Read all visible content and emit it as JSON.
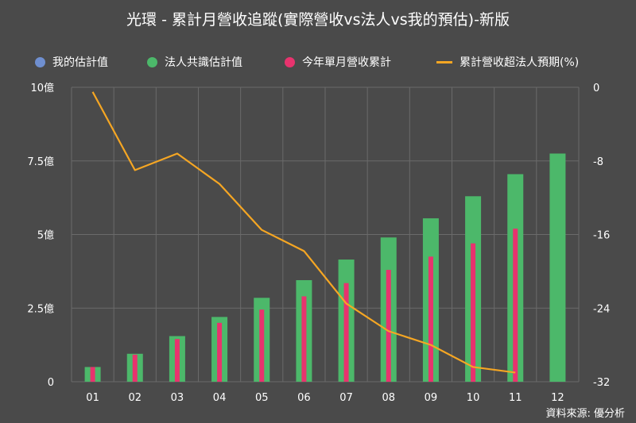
{
  "chart_data": {
    "type": "bar",
    "title": "光環 - 累計月營收追蹤(實際營收vs法人vs我的預估)-新版",
    "categories": [
      "01",
      "02",
      "03",
      "04",
      "05",
      "06",
      "07",
      "08",
      "09",
      "10",
      "11",
      "12"
    ],
    "series": [
      {
        "name": "我的估計值",
        "type": "bar",
        "color": "#6f8fd0",
        "values": [
          null,
          null,
          null,
          null,
          null,
          null,
          null,
          null,
          null,
          null,
          null,
          null
        ]
      },
      {
        "name": "法人共識估計值",
        "type": "bar",
        "color": "#4cb86a",
        "values": [
          0.5,
          0.95,
          1.55,
          2.2,
          2.85,
          3.45,
          4.15,
          4.9,
          5.55,
          6.3,
          7.05,
          7.75
        ]
      },
      {
        "name": "今年單月營收累計",
        "type": "bar",
        "color": "#e8336e",
        "values": [
          0.5,
          0.92,
          1.45,
          2.0,
          2.45,
          2.9,
          3.35,
          3.8,
          4.25,
          4.7,
          5.2,
          null
        ]
      },
      {
        "name": "累計營收超法人預期(%)",
        "type": "line",
        "axis": "right",
        "color": "#f5a623",
        "values": [
          -0.5,
          -9.0,
          -7.2,
          -10.5,
          -15.5,
          -17.8,
          -23.5,
          -26.5,
          -28.0,
          -30.4,
          -31.0,
          null
        ]
      }
    ],
    "left_axis": {
      "min": 0,
      "max": 10,
      "ticks": [
        {
          "v": 0,
          "label": "0"
        },
        {
          "v": 2.5,
          "label": "2.5億"
        },
        {
          "v": 5,
          "label": "5億"
        },
        {
          "v": 7.5,
          "label": "7.5億"
        },
        {
          "v": 10,
          "label": "10億"
        }
      ]
    },
    "right_axis": {
      "min": -32,
      "max": 0,
      "ticks": [
        {
          "v": 0,
          "label": "0"
        },
        {
          "v": -8,
          "label": "-8"
        },
        {
          "v": -16,
          "label": "-16"
        },
        {
          "v": -24,
          "label": "-24"
        },
        {
          "v": -32,
          "label": "-32"
        }
      ]
    },
    "grid": true,
    "legend_position": "top"
  },
  "legend": {
    "my_estimate": "我的估計值",
    "consensus": "法人共識估計值",
    "monthly_cumulative": "今年單月營收累計",
    "beat_pct": "累計營收超法人預期(%)"
  },
  "colors": {
    "background": "#4a4a4a",
    "grid": "#6a6a6a",
    "blue": "#6f8fd0",
    "green": "#4cb86a",
    "pink": "#e8336e",
    "orange": "#f5a623"
  },
  "source": "資料來源: 優分析"
}
